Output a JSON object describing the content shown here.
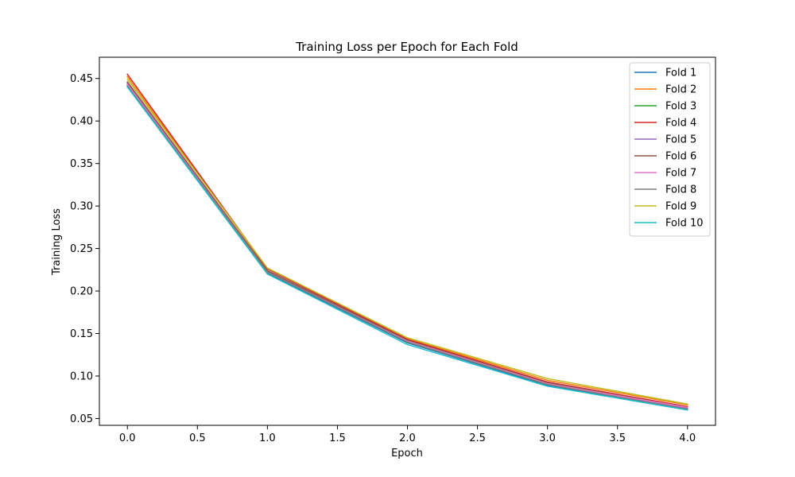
{
  "chart_data": {
    "type": "line",
    "title": "Training Loss per Epoch for Each Fold",
    "xlabel": "Epoch",
    "ylabel": "Training Loss",
    "xlim": [
      -0.2,
      4.2
    ],
    "ylim": [
      0.042,
      0.475
    ],
    "xticks": [
      "0.0",
      "0.5",
      "1.0",
      "1.5",
      "2.0",
      "2.5",
      "3.0",
      "3.5",
      "4.0"
    ],
    "yticks": [
      "0.05",
      "0.10",
      "0.15",
      "0.20",
      "0.25",
      "0.30",
      "0.35",
      "0.40",
      "0.45"
    ],
    "grid": false,
    "legend_position": "top-right",
    "x": [
      0,
      1,
      2,
      3,
      4
    ],
    "series": [
      {
        "name": "Fold 1",
        "color": "#1f77b4",
        "values": [
          0.442,
          0.221,
          0.139,
          0.089,
          0.061
        ]
      },
      {
        "name": "Fold 2",
        "color": "#ff7f0e",
        "values": [
          0.452,
          0.226,
          0.144,
          0.095,
          0.066
        ]
      },
      {
        "name": "Fold 3",
        "color": "#2ca02c",
        "values": [
          0.445,
          0.222,
          0.14,
          0.09,
          0.062
        ]
      },
      {
        "name": "Fold 4",
        "color": "#d62728",
        "values": [
          0.455,
          0.226,
          0.143,
          0.093,
          0.064
        ]
      },
      {
        "name": "Fold 5",
        "color": "#9467bd",
        "values": [
          0.444,
          0.223,
          0.141,
          0.091,
          0.062
        ]
      },
      {
        "name": "Fold 6",
        "color": "#8c564b",
        "values": [
          0.446,
          0.224,
          0.142,
          0.092,
          0.063
        ]
      },
      {
        "name": "Fold 7",
        "color": "#e377c2",
        "values": [
          0.443,
          0.222,
          0.141,
          0.091,
          0.063
        ]
      },
      {
        "name": "Fold 8",
        "color": "#7f7f7f",
        "values": [
          0.441,
          0.222,
          0.14,
          0.09,
          0.061
        ]
      },
      {
        "name": "Fold 9",
        "color": "#bcbd22",
        "values": [
          0.449,
          0.227,
          0.145,
          0.097,
          0.067
        ]
      },
      {
        "name": "Fold 10",
        "color": "#17becf",
        "values": [
          0.44,
          0.22,
          0.137,
          0.088,
          0.06
        ]
      }
    ]
  }
}
